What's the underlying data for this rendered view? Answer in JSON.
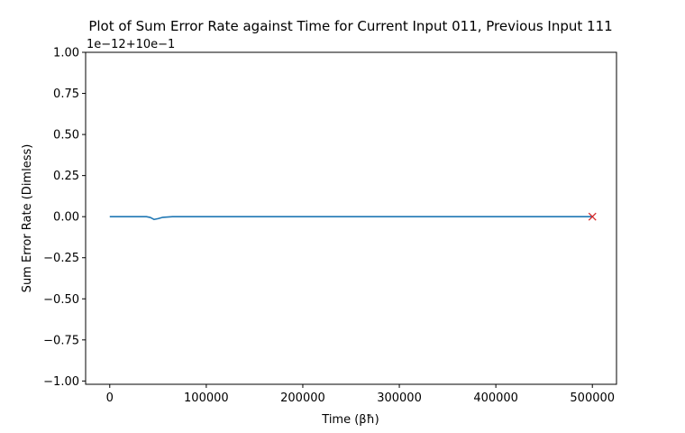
{
  "chart_data": {
    "type": "line",
    "title": "Plot of Sum Error Rate against Time for Current Input 011, Previous Input 111",
    "xlabel": "Time (βħ)",
    "ylabel": "Sum Error Rate (Dimless)",
    "offset_text": "1e−12+10e−1",
    "xlim": [
      -25000,
      525000
    ],
    "ylim": [
      -1.02,
      1.0
    ],
    "x_ticks": [
      0,
      100000,
      200000,
      300000,
      400000,
      500000
    ],
    "x_tick_labels": [
      "0",
      "100000",
      "200000",
      "300000",
      "400000",
      "500000"
    ],
    "y_ticks": [
      -1.0,
      -0.75,
      -0.5,
      -0.25,
      0.0,
      0.25,
      0.5,
      0.75,
      1.0
    ],
    "y_tick_labels": [
      "−1.00",
      "−0.75",
      "−0.50",
      "−0.25",
      "0.00",
      "0.25",
      "0.50",
      "0.75",
      "1.00"
    ],
    "grid": false,
    "series": [
      {
        "color": "#1f77b4",
        "x": [
          0,
          30000,
          38000,
          42000,
          46000,
          50000,
          55000,
          60000,
          65000,
          80000,
          150000,
          300000,
          500000
        ],
        "y": [
          0,
          0,
          0,
          -0.005,
          -0.017,
          -0.012,
          -0.004,
          -0.002,
          0,
          0,
          0,
          0,
          0
        ]
      }
    ],
    "markers": [
      {
        "x": 500000,
        "y": 0.0,
        "symbol": "x",
        "color": "#d62728"
      }
    ]
  }
}
